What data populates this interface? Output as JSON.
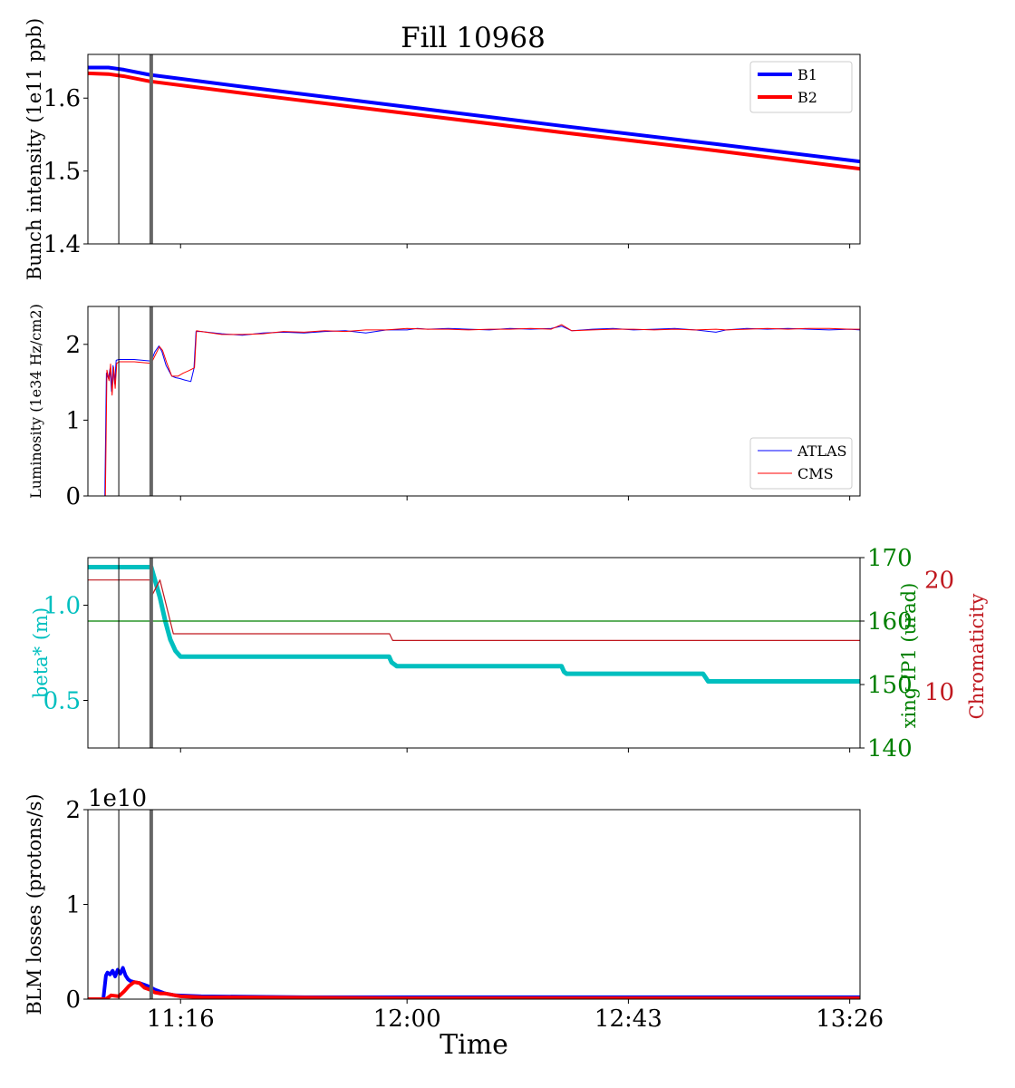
{
  "figure": {
    "title": "Fill 10968",
    "xlabel": "Time",
    "x_ticks": [
      "11:16",
      "12:00",
      "12:43",
      "13:26"
    ],
    "x_tick_minutes": [
      676,
      720,
      763,
      806
    ],
    "x_range_minutes": [
      658,
      808
    ],
    "markers": [
      {
        "time": "11:04",
        "minutes": 664,
        "style": "thin",
        "color": "#000000"
      },
      {
        "time": "11:10",
        "minutes": 670.3,
        "style": "thick",
        "color": "#666666"
      }
    ]
  },
  "chart_data": [
    {
      "type": "line",
      "ylabel": "Bunch intensity (1e11 ppb)",
      "ylim": [
        1.4,
        1.66
      ],
      "yticks": [
        "1.4",
        "1.5",
        "1.6"
      ],
      "ytick_values": [
        1.4,
        1.5,
        1.6
      ],
      "legend": "top-right",
      "series": [
        {
          "name": "B1",
          "color": "#0000ff",
          "width": 4,
          "x": [
            658,
            662,
            665,
            670,
            690,
            720,
            750,
            780,
            808
          ],
          "y": [
            1.642,
            1.642,
            1.639,
            1.632,
            1.614,
            1.588,
            1.562,
            1.537,
            1.513
          ]
        },
        {
          "name": "B2",
          "color": "#ff0000",
          "width": 4,
          "x": [
            658,
            662,
            665,
            670,
            690,
            720,
            750,
            780,
            808
          ],
          "y": [
            1.634,
            1.633,
            1.63,
            1.623,
            1.605,
            1.579,
            1.553,
            1.528,
            1.503
          ]
        }
      ]
    },
    {
      "type": "line",
      "ylabel": "Luminosity (1e34 Hz/cm2)",
      "ylim": [
        0,
        2.5
      ],
      "yticks": [
        "0",
        "1",
        "2"
      ],
      "ytick_values": [
        0,
        1,
        2
      ],
      "legend": "bottom-right",
      "series": [
        {
          "name": "ATLAS",
          "color": "#0000ff",
          "width": 1,
          "x": [
            658,
            661.3,
            661.6,
            662.0,
            662.3,
            662.6,
            662.9,
            663.2,
            663.5,
            664.0,
            667,
            670.3,
            671.0,
            671.8,
            672.4,
            673.2,
            674.3,
            675.1,
            675.8,
            676.8,
            678.0,
            678.6,
            679.0,
            680,
            684,
            688,
            692,
            696,
            700,
            704,
            708,
            712,
            716,
            720,
            722,
            724,
            728,
            732,
            736,
            740,
            744,
            748,
            750,
            752,
            756,
            760,
            764,
            768,
            772,
            776,
            780,
            782,
            786,
            790,
            794,
            798,
            802,
            806,
            808
          ],
          "y": [
            0,
            0,
            1.62,
            1.55,
            1.68,
            1.38,
            1.72,
            1.48,
            1.79,
            1.8,
            1.8,
            1.78,
            1.9,
            1.98,
            1.9,
            1.72,
            1.58,
            1.56,
            1.55,
            1.53,
            1.51,
            1.68,
            2.17,
            2.17,
            2.14,
            2.12,
            2.15,
            2.16,
            2.15,
            2.17,
            2.18,
            2.15,
            2.19,
            2.19,
            2.21,
            2.2,
            2.21,
            2.2,
            2.19,
            2.21,
            2.2,
            2.21,
            2.24,
            2.18,
            2.2,
            2.21,
            2.19,
            2.2,
            2.21,
            2.19,
            2.16,
            2.19,
            2.21,
            2.2,
            2.21,
            2.2,
            2.19,
            2.2,
            2.19
          ]
        },
        {
          "name": "CMS",
          "color": "#ff0000",
          "width": 1,
          "x": [
            658,
            661.4,
            661.7,
            662.1,
            662.4,
            662.7,
            663.0,
            663.3,
            663.6,
            664.1,
            667,
            670.3,
            671.1,
            671.9,
            672.5,
            673.3,
            674.3,
            675.5,
            676.5,
            677.5,
            678.7,
            679.1,
            680,
            684,
            688,
            692,
            696,
            700,
            704,
            708,
            712,
            716,
            720,
            724,
            728,
            732,
            736,
            740,
            744,
            748,
            750,
            752,
            756,
            760,
            764,
            768,
            772,
            776,
            780,
            782,
            786,
            790,
            794,
            798,
            802,
            806,
            808
          ],
          "y": [
            0,
            0,
            1.66,
            1.52,
            1.74,
            1.33,
            1.7,
            1.42,
            1.75,
            1.77,
            1.77,
            1.75,
            1.86,
            1.97,
            1.92,
            1.76,
            1.58,
            1.58,
            1.62,
            1.65,
            1.69,
            2.18,
            2.17,
            2.13,
            2.13,
            2.14,
            2.17,
            2.16,
            2.18,
            2.17,
            2.19,
            2.19,
            2.21,
            2.2,
            2.2,
            2.19,
            2.2,
            2.2,
            2.21,
            2.2,
            2.26,
            2.18,
            2.19,
            2.2,
            2.2,
            2.19,
            2.2,
            2.19,
            2.2,
            2.19,
            2.2,
            2.21,
            2.2,
            2.21,
            2.21,
            2.2,
            2.2
          ]
        }
      ]
    },
    {
      "type": "line",
      "ylabel": "beta* (m)",
      "ylabel_right": "xing IP1 (urad)",
      "ylabel_right2": "Chromaticity",
      "ylim": [
        0.25,
        1.25
      ],
      "yticks": [
        "0.5",
        "1.0"
      ],
      "ytick_values": [
        0.5,
        1.0
      ],
      "ylim_right": [
        140,
        170
      ],
      "yticks_right": [
        "140",
        "150",
        "160",
        "170"
      ],
      "ytick_values_right": [
        140,
        150,
        160,
        170
      ],
      "ylim_right2": [
        5,
        22
      ],
      "yticks_right2": [
        "10",
        "20"
      ],
      "ytick_values_right2": [
        10,
        20
      ],
      "series": [
        {
          "name": "beta*",
          "axis": "left",
          "color": "#00bfbf",
          "width": 5,
          "x": [
            658,
            670.3,
            672,
            673,
            674,
            675,
            676,
            716.5,
            717,
            718,
            750,
            750.5,
            751,
            777.5,
            778,
            778.5,
            808
          ],
          "y": [
            1.2,
            1.2,
            1.04,
            0.92,
            0.82,
            0.76,
            0.73,
            0.73,
            0.7,
            0.68,
            0.68,
            0.65,
            0.64,
            0.64,
            0.62,
            0.6,
            0.6
          ]
        },
        {
          "name": "xing IP1",
          "axis": "right",
          "color": "#008000",
          "width": 1.2,
          "x": [
            658,
            808
          ],
          "y": [
            160,
            160
          ]
        },
        {
          "name": "Chromaticity",
          "axis": "right2",
          "color": "#c0181f",
          "width": 1.2,
          "x": [
            658,
            670.3,
            670.3,
            672,
            674.6,
            716.6,
            717.2,
            808
          ],
          "y": [
            20,
            20,
            18.5,
            20,
            15.2,
            15.2,
            14.6,
            14.6
          ]
        }
      ]
    },
    {
      "type": "line",
      "ylabel": "BLM losses (protons/s)",
      "offset_text": "1e10",
      "ylim": [
        0,
        2
      ],
      "yticks": [
        "0",
        "1",
        "2"
      ],
      "ytick_values": [
        0,
        1,
        2
      ],
      "series": [
        {
          "name": "B1",
          "color": "#0000ff",
          "width": 4,
          "x": [
            658,
            661.0,
            661.5,
            661.8,
            662.3,
            662.8,
            663.3,
            663.8,
            664.3,
            664.8,
            665.3,
            665.8,
            666.3,
            667.0,
            668.0,
            669.0,
            670.0,
            671.0,
            672.0,
            673.0,
            675.0,
            680,
            700,
            720,
            750,
            780,
            808
          ],
          "y": [
            0,
            0,
            0.25,
            0.28,
            0.26,
            0.3,
            0.24,
            0.31,
            0.27,
            0.33,
            0.25,
            0.21,
            0.19,
            0.18,
            0.17,
            0.15,
            0.13,
            0.1,
            0.08,
            0.06,
            0.04,
            0.03,
            0.02,
            0.02,
            0.02,
            0.02,
            0.02
          ]
        },
        {
          "name": "B2",
          "color": "#ff0000",
          "width": 4,
          "x": [
            658,
            661.5,
            662.5,
            664.0,
            665.0,
            666.0,
            667.0,
            668.0,
            669.0,
            670.0,
            671.0,
            672.0,
            673.0,
            674.0,
            676.0,
            680,
            700,
            720,
            750,
            780,
            808
          ],
          "y": [
            0,
            0,
            0.04,
            0.03,
            0.08,
            0.14,
            0.18,
            0.17,
            0.12,
            0.1,
            0.07,
            0.06,
            0.06,
            0.05,
            0.03,
            0.02,
            0.015,
            0.01,
            0.01,
            0.01,
            0.01
          ]
        }
      ]
    }
  ]
}
